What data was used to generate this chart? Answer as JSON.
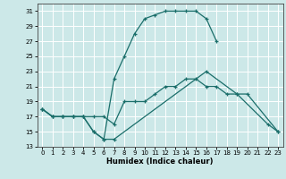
{
  "xlabel": "Humidex (Indice chaleur)",
  "bg_color": "#cce8e8",
  "grid_color": "#ffffff",
  "line_color": "#1a6e6a",
  "ylim": [
    13,
    32
  ],
  "xlim": [
    -0.5,
    23.5
  ],
  "yticks": [
    13,
    15,
    17,
    19,
    21,
    23,
    25,
    27,
    29,
    31
  ],
  "xticks": [
    0,
    1,
    2,
    3,
    4,
    5,
    6,
    7,
    8,
    9,
    10,
    11,
    12,
    13,
    14,
    15,
    16,
    17,
    18,
    19,
    20,
    21,
    22,
    23
  ],
  "line_top_x": [
    0,
    1,
    2,
    3,
    4,
    5,
    6,
    7,
    8,
    9,
    10,
    11,
    12,
    13,
    14,
    15,
    16,
    17
  ],
  "line_top_y": [
    18,
    17,
    17,
    17,
    17,
    15,
    14,
    22,
    25,
    28,
    30,
    30.5,
    31,
    31,
    31,
    31,
    30,
    27
  ],
  "line_mid_x": [
    0,
    1,
    2,
    3,
    4,
    5,
    6,
    7,
    16,
    19,
    22,
    23
  ],
  "line_mid_y": [
    18,
    17,
    17,
    17,
    17,
    15,
    14,
    14,
    23,
    20,
    16,
    15
  ],
  "line_bot_x": [
    0,
    1,
    2,
    3,
    4,
    5,
    6,
    7,
    8,
    9,
    10,
    11,
    12,
    13,
    14,
    15,
    16,
    17,
    18,
    19,
    20,
    23
  ],
  "line_bot_y": [
    18,
    17,
    17,
    17,
    17,
    17,
    17,
    16,
    19,
    19,
    19,
    20,
    21,
    21,
    22,
    22,
    21,
    21,
    20,
    20,
    20,
    15
  ]
}
